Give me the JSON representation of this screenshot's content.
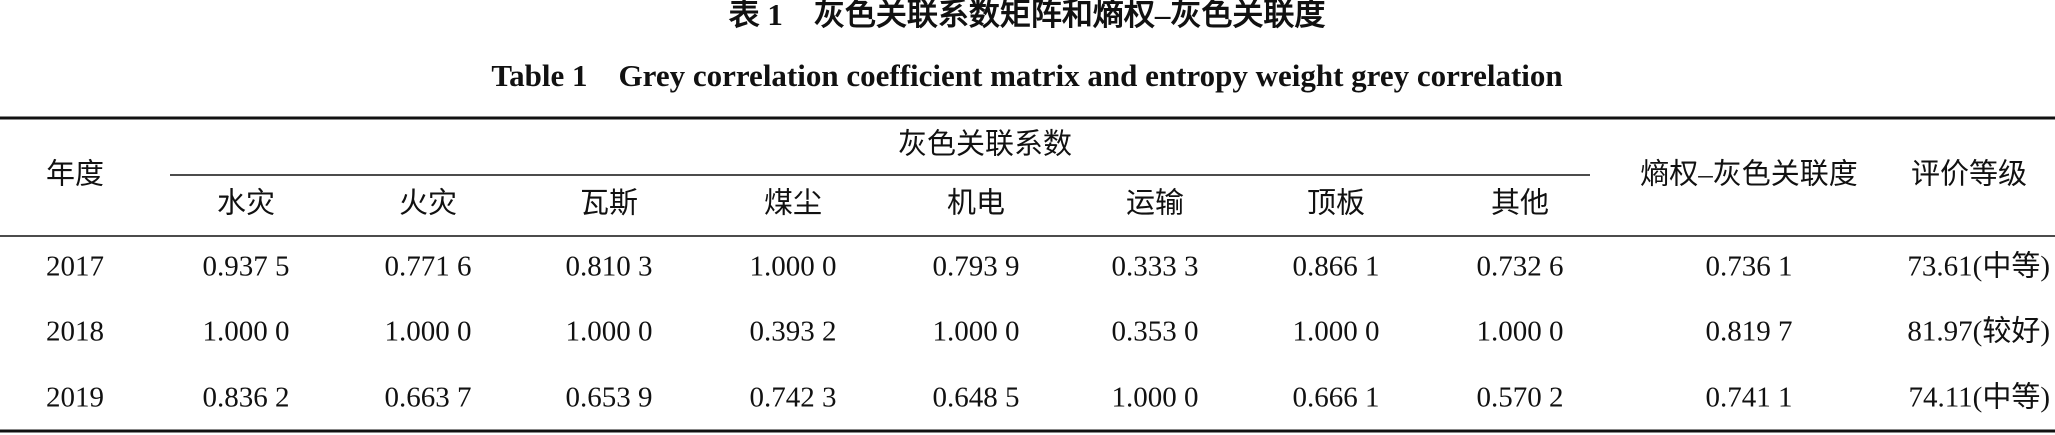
{
  "title_cn": "表 1　灰色关联系数矩阵和熵权–灰色关联度",
  "title_en": "Table 1　Grey correlation coefficient matrix and entropy weight grey correlation",
  "table": {
    "header": {
      "year": "年度",
      "group": "灰色关联系数",
      "columns": [
        "水灾",
        "火灾",
        "瓦斯",
        "煤尘",
        "机电",
        "运输",
        "顶板",
        "其他"
      ],
      "weight": "熵权–灰色关联度",
      "grade": "评价等级"
    },
    "rows": [
      [
        "2017",
        "0.937 5",
        "0.771 6",
        "0.810 3",
        "1.000 0",
        "0.793 9",
        "0.333 3",
        "0.866 1",
        "0.732 6",
        "0.736 1",
        "73.61(中等)"
      ],
      [
        "2018",
        "1.000 0",
        "1.000 0",
        "1.000 0",
        "0.393 2",
        "1.000 0",
        "0.353 0",
        "1.000 0",
        "1.000 0",
        "0.819 7",
        "81.97(较好)"
      ],
      [
        "2019",
        "0.836 2",
        "0.663 7",
        "0.653 9",
        "0.742 3",
        "0.648 5",
        "1.000 0",
        "0.666 1",
        "0.570 2",
        "0.741 1",
        "74.11(中等)"
      ]
    ]
  }
}
